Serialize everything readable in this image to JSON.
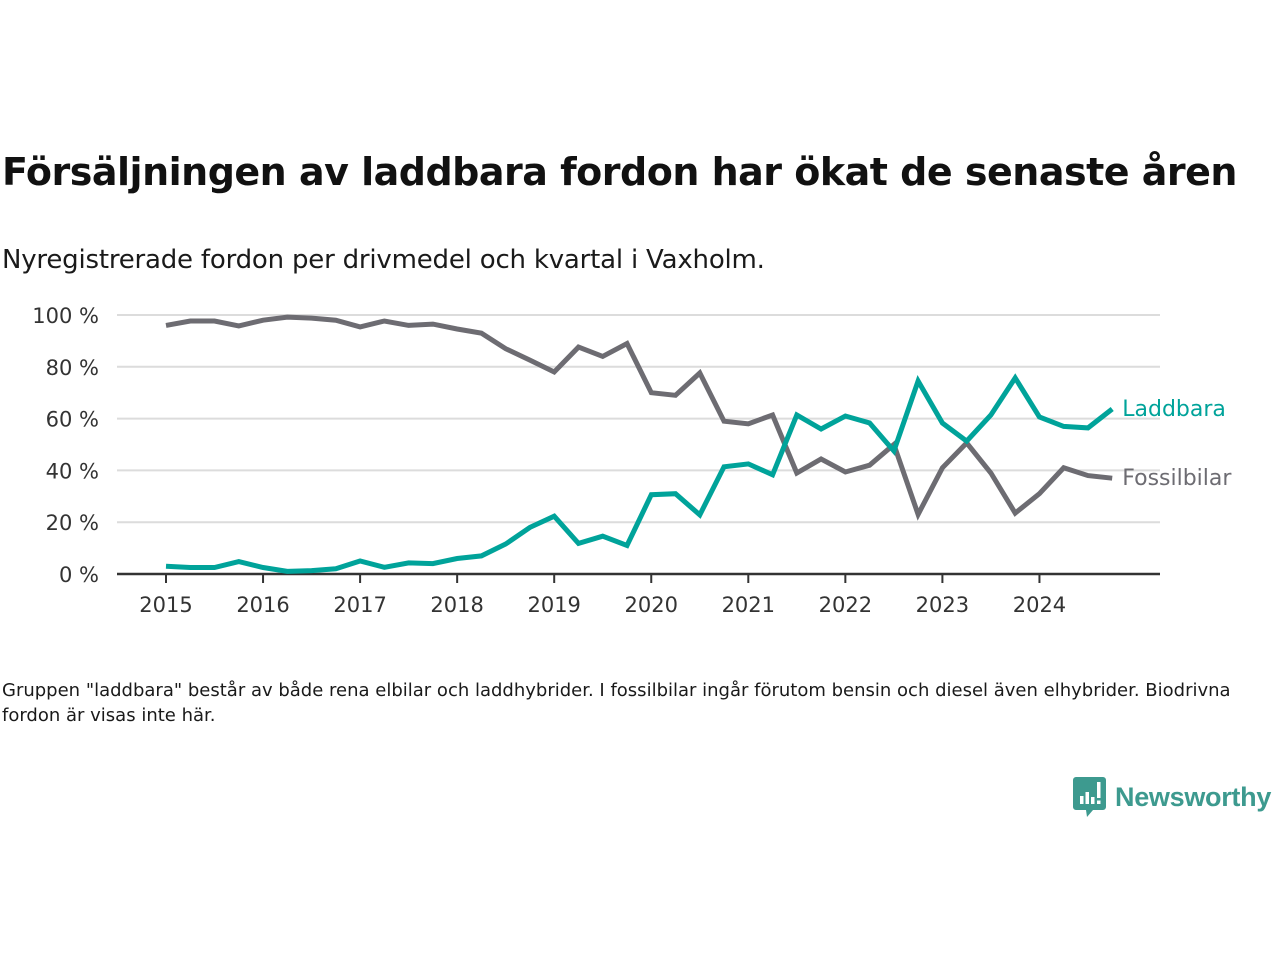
{
  "header": {
    "title": "Försäljningen av laddbara fordon har ökat de senaste åren",
    "subtitle": "Nyregistrerade fordon per drivmedel och kvartal i Vaxholm."
  },
  "footnote": "Gruppen \"laddbara\" består av både rena elbilar och laddhybrider. I fossilbilar ingår förutom bensin och diesel även elhybrider. Biodrivna fordon är visas inte här.",
  "logo": {
    "name": "Newsworthy",
    "icon": "chart-speech-bubble-icon",
    "color": "#3d9a8f"
  },
  "chart_data": {
    "type": "line",
    "title": "Försäljningen av laddbara fordon har ökat de senaste åren",
    "subtitle": "Nyregistrerade fordon per drivmedel och kvartal i Vaxholm.",
    "xlabel": "",
    "ylabel": "",
    "ylim": [
      0,
      100
    ],
    "xlim": [
      2015,
      2025
    ],
    "grid": true,
    "legend": "inline-right",
    "yticks": [
      0,
      20,
      40,
      60,
      80,
      100
    ],
    "ytick_labels": [
      "0 %",
      "20 %",
      "40 %",
      "60 %",
      "80 %",
      "100 %"
    ],
    "xticks": [
      2015,
      2016,
      2017,
      2018,
      2019,
      2020,
      2021,
      2022,
      2023,
      2024
    ],
    "xtick_labels": [
      "2015",
      "2016",
      "2017",
      "2018",
      "2019",
      "2020",
      "2021",
      "2022",
      "2023",
      "2024"
    ],
    "x": [
      2015.0,
      2015.25,
      2015.5,
      2015.75,
      2016.0,
      2016.25,
      2016.5,
      2016.75,
      2017.0,
      2017.25,
      2017.5,
      2017.75,
      2018.0,
      2018.25,
      2018.5,
      2018.75,
      2019.0,
      2019.25,
      2019.5,
      2019.75,
      2020.0,
      2020.25,
      2020.5,
      2020.75,
      2021.0,
      2021.25,
      2021.5,
      2021.75,
      2022.0,
      2022.25,
      2022.5,
      2022.75,
      2023.0,
      2023.25,
      2023.5,
      2023.75,
      2024.0,
      2024.25,
      2024.5,
      2024.75
    ],
    "series": [
      {
        "name": "Laddbara",
        "color": "#00a39a",
        "values": [
          3,
          2.5,
          2.5,
          4.8,
          2.5,
          1,
          1.3,
          2,
          5,
          2.6,
          4.3,
          4,
          6,
          7,
          11.6,
          18,
          22.3,
          11.8,
          14.6,
          11,
          30.6,
          31,
          22.8,
          41.4,
          42.5,
          38.3,
          61.4,
          56,
          61,
          58.3,
          47.5,
          74.5,
          58.3,
          51.3,
          61.4,
          75.7,
          60.6,
          57,
          56.4,
          63.7
        ]
      },
      {
        "name": "Fossilbilar",
        "color": "#6d6c72",
        "values": [
          96,
          97.7,
          97.7,
          95.8,
          98,
          99.2,
          98.8,
          98,
          95.4,
          97.7,
          96,
          96.5,
          94.6,
          93,
          87,
          82.6,
          78,
          87.6,
          84,
          89,
          70,
          69,
          77.6,
          59,
          58,
          61.4,
          39,
          44.4,
          39.4,
          42,
          50,
          23,
          41,
          50.6,
          39,
          23.5,
          31,
          41,
          38,
          37
        ]
      }
    ]
  }
}
